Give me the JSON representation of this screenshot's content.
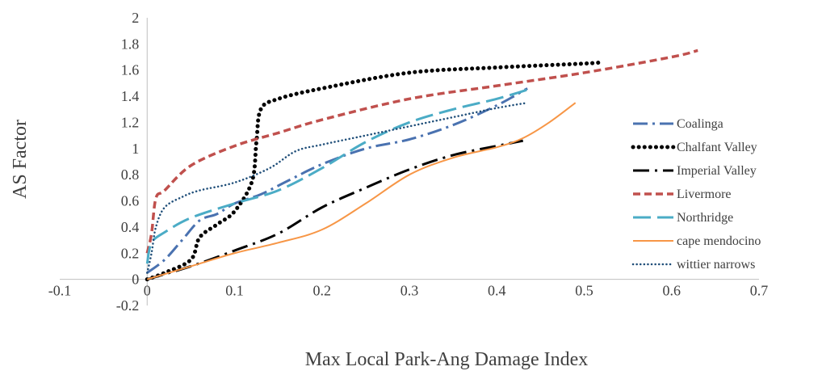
{
  "chart_data": {
    "type": "line",
    "title": "",
    "xlabel": "Max Local Park-Ang Damage Index",
    "ylabel": "AS Factor",
    "xlim": [
      -0.1,
      0.7
    ],
    "ylim": [
      -0.2,
      2
    ],
    "x_ticks": [
      "-0.1",
      "0",
      "0.1",
      "0.2",
      "0.3",
      "0.4",
      "0.5",
      "0.6",
      "0.7"
    ],
    "y_ticks": [
      "-0.2",
      "0",
      "0.2",
      "0.4",
      "0.6",
      "0.8",
      "1",
      "1.2",
      "1.4",
      "1.6",
      "1.8",
      "2"
    ],
    "grid": false,
    "legend_position": "right",
    "series": [
      {
        "name": "Coalinga",
        "color": "#4a72b0",
        "dash": "dash-dot",
        "points": [
          [
            0,
            0.05
          ],
          [
            0.02,
            0.15
          ],
          [
            0.04,
            0.3
          ],
          [
            0.06,
            0.45
          ],
          [
            0.08,
            0.5
          ],
          [
            0.1,
            0.58
          ],
          [
            0.13,
            0.65
          ],
          [
            0.16,
            0.75
          ],
          [
            0.2,
            0.88
          ],
          [
            0.25,
            1.0
          ],
          [
            0.3,
            1.07
          ],
          [
            0.35,
            1.18
          ],
          [
            0.4,
            1.33
          ],
          [
            0.435,
            1.46
          ]
        ]
      },
      {
        "name": "Chalfant Valley",
        "color": "#000000",
        "dash": "dotted",
        "points": [
          [
            0,
            0
          ],
          [
            0.02,
            0.05
          ],
          [
            0.05,
            0.15
          ],
          [
            0.06,
            0.32
          ],
          [
            0.08,
            0.42
          ],
          [
            0.1,
            0.52
          ],
          [
            0.12,
            0.75
          ],
          [
            0.125,
            1.05
          ],
          [
            0.13,
            1.3
          ],
          [
            0.15,
            1.38
          ],
          [
            0.2,
            1.46
          ],
          [
            0.3,
            1.58
          ],
          [
            0.4,
            1.62
          ],
          [
            0.5,
            1.65
          ],
          [
            0.52,
            1.66
          ]
        ]
      },
      {
        "name": "Imperial Valley",
        "color": "#000000",
        "dash": "long-dash-dot",
        "points": [
          [
            0,
            0
          ],
          [
            0.05,
            0.1
          ],
          [
            0.1,
            0.22
          ],
          [
            0.15,
            0.35
          ],
          [
            0.2,
            0.55
          ],
          [
            0.25,
            0.7
          ],
          [
            0.3,
            0.84
          ],
          [
            0.35,
            0.95
          ],
          [
            0.4,
            1.02
          ],
          [
            0.43,
            1.06
          ]
        ]
      },
      {
        "name": "Livermore",
        "color": "#c0504d",
        "dash": "dashed",
        "points": [
          [
            0,
            0.2
          ],
          [
            0.005,
            0.35
          ],
          [
            0.01,
            0.62
          ],
          [
            0.02,
            0.68
          ],
          [
            0.05,
            0.87
          ],
          [
            0.1,
            1.02
          ],
          [
            0.15,
            1.12
          ],
          [
            0.2,
            1.22
          ],
          [
            0.3,
            1.38
          ],
          [
            0.4,
            1.48
          ],
          [
            0.5,
            1.58
          ],
          [
            0.6,
            1.7
          ],
          [
            0.63,
            1.75
          ]
        ]
      },
      {
        "name": "Northridge",
        "color": "#4bacc6",
        "dash": "long-dash",
        "points": [
          [
            0,
            0.12
          ],
          [
            0.005,
            0.28
          ],
          [
            0.02,
            0.36
          ],
          [
            0.05,
            0.47
          ],
          [
            0.1,
            0.58
          ],
          [
            0.15,
            0.68
          ],
          [
            0.2,
            0.85
          ],
          [
            0.25,
            1.05
          ],
          [
            0.3,
            1.2
          ],
          [
            0.35,
            1.3
          ],
          [
            0.4,
            1.38
          ],
          [
            0.435,
            1.45
          ]
        ]
      },
      {
        "name": "cape mendocino",
        "color": "#f79646",
        "dash": "solid",
        "points": [
          [
            0,
            0
          ],
          [
            0.05,
            0.1
          ],
          [
            0.1,
            0.2
          ],
          [
            0.15,
            0.28
          ],
          [
            0.2,
            0.38
          ],
          [
            0.25,
            0.58
          ],
          [
            0.3,
            0.8
          ],
          [
            0.35,
            0.93
          ],
          [
            0.4,
            1.01
          ],
          [
            0.43,
            1.08
          ],
          [
            0.46,
            1.2
          ],
          [
            0.49,
            1.35
          ]
        ]
      },
      {
        "name": "wittier narrows",
        "color": "#1f4e79",
        "dash": "dense-dotted",
        "points": [
          [
            0,
            0.05
          ],
          [
            0.005,
            0.2
          ],
          [
            0.01,
            0.4
          ],
          [
            0.02,
            0.55
          ],
          [
            0.04,
            0.63
          ],
          [
            0.06,
            0.68
          ],
          [
            0.1,
            0.74
          ],
          [
            0.14,
            0.85
          ],
          [
            0.17,
            0.98
          ],
          [
            0.2,
            1.03
          ],
          [
            0.25,
            1.1
          ],
          [
            0.3,
            1.17
          ],
          [
            0.35,
            1.24
          ],
          [
            0.4,
            1.31
          ],
          [
            0.435,
            1.35
          ]
        ]
      }
    ]
  }
}
